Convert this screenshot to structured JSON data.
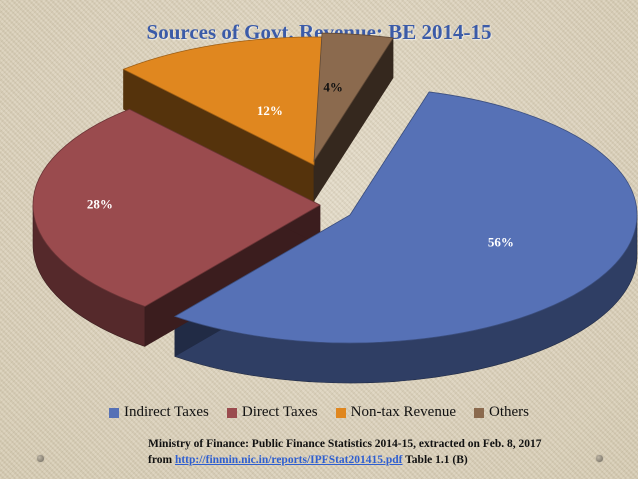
{
  "chart_data": {
    "type": "pie",
    "title": "Sources of Govt. Revenue: BE 2014-15",
    "categories": [
      "Indirect Taxes",
      "Direct Taxes",
      "Non-tax Revenue",
      "Others"
    ],
    "values": [
      56,
      28,
      12,
      4
    ],
    "labels": [
      "56%",
      "28%",
      "12%",
      "4%"
    ],
    "colors": [
      "#5671b6",
      "#9a4b4e",
      "#e0871f",
      "#8b6a4e"
    ],
    "legend": "bottom"
  },
  "source": {
    "text": "Ministry of Finance: Public Finance Statistics 2014-15, extracted on Feb. 8, 2017 from",
    "link": "http://finmin.nic.in/reports/IPFStat201415.pdf",
    "suffix": "Table 1.1 (B)"
  }
}
